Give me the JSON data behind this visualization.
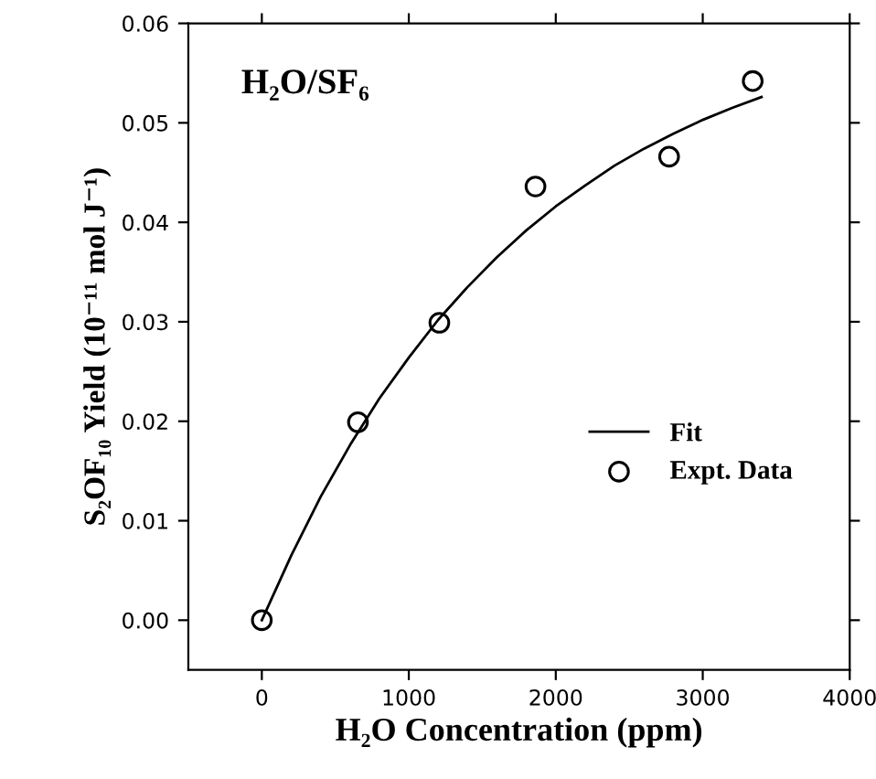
{
  "chart_data": {
    "type": "scatter",
    "title": "H₂O/SF₆",
    "xlabel": "H₂O Concentration (ppm)",
    "ylabel": "S₂OF₁₀ Yield (10⁻¹¹ mol J⁻¹)",
    "series": [
      {
        "name": "Fit",
        "type": "line",
        "color": "#000000",
        "marker": "none",
        "line_style": "solid",
        "x": [
          0,
          200,
          400,
          600,
          800,
          1000,
          1200,
          1400,
          1600,
          1800,
          2000,
          2200,
          2400,
          2600,
          2800,
          3000,
          3200,
          3400
        ],
        "values": [
          0,
          0.0065,
          0.0124,
          0.0176,
          0.0223,
          0.0264,
          0.0302,
          0.0335,
          0.0365,
          0.0392,
          0.0416,
          0.0437,
          0.0457,
          0.0474,
          0.0489,
          0.0503,
          0.0515,
          0.0526
        ]
      },
      {
        "name": "Expt. Data",
        "color": "#000000",
        "marker": "circle",
        "x": [
          0,
          654,
          1208,
          1862,
          2771,
          3340
        ],
        "values": [
          0,
          0.0199,
          0.0299,
          0.0436,
          0.0466,
          0.0542
        ]
      }
    ],
    "xlim": [
      -500,
      4000
    ],
    "xticks": [
      0,
      1000,
      2000,
      3000,
      4000
    ],
    "ylim": [
      -0.005,
      0.06
    ],
    "yticks": [
      {
        "value": 0,
        "label": "0.00"
      },
      {
        "value": 0.01,
        "label": "0.01"
      },
      {
        "value": 0.02,
        "label": "0.02"
      },
      {
        "value": 0.03,
        "label": "0.03"
      },
      {
        "value": 0.04,
        "label": "0.04"
      },
      {
        "value": 0.05,
        "label": "0.05"
      },
      {
        "value": 0.06,
        "label": "0.06"
      }
    ],
    "grid": false,
    "legend": "bottom right"
  }
}
